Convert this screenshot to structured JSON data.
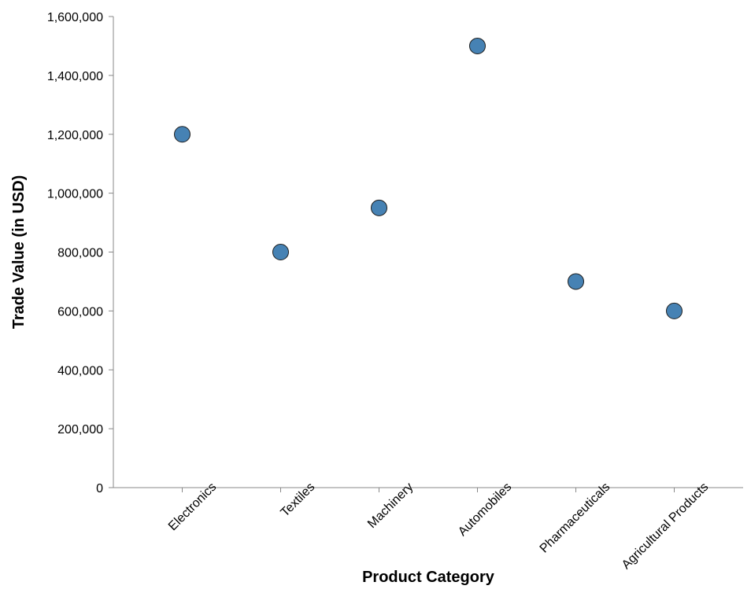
{
  "chart_data": {
    "type": "scatter",
    "categories": [
      "Electronics",
      "Textiles",
      "Machinery",
      "Automobiles",
      "Pharmaceuticals",
      "Agricultural Products"
    ],
    "values": [
      1200000,
      800000,
      950000,
      1500000,
      700000,
      600000
    ],
    "xlabel": "Product Category",
    "ylabel": "Trade Value (in USD)",
    "ylim": [
      0,
      1600000
    ],
    "y_ticks": [
      0,
      200000,
      400000,
      600000,
      800000,
      1000000,
      1200000,
      1400000,
      1600000
    ],
    "y_tick_labels": [
      "0",
      "200,000",
      "400,000",
      "600,000",
      "800,000",
      "1,000,000",
      "1,200,000",
      "1,400,000",
      "1,600,000"
    ],
    "grid": false,
    "point_color": "#4682b4"
  }
}
